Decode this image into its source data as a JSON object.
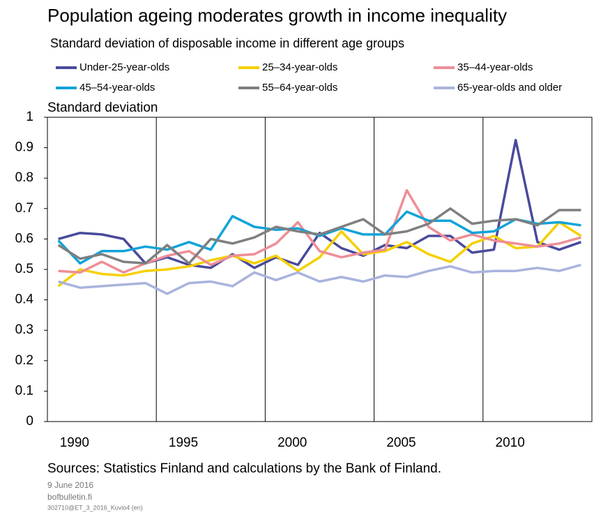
{
  "chart_data": {
    "type": "line",
    "title": "Population ageing moderates growth in income inequality",
    "subtitle": "Standard deviation of disposable income in different age groups",
    "y_axis_label": "Standard deviation",
    "source": "Sources: Statistics Finland and calculations by the Bank of Finland.",
    "date": "9 June 2016",
    "site": "bofbulletin.fi",
    "code": "302710@ET_3_2016_Kuvio4 (en)",
    "x": [
      1989,
      1990,
      1991,
      1992,
      1993,
      1994,
      1995,
      1996,
      1997,
      1998,
      1999,
      2000,
      2001,
      2002,
      2003,
      2004,
      2005,
      2006,
      2007,
      2008,
      2009,
      2010,
      2011,
      2012,
      2013
    ],
    "xlim": [
      1988.5,
      2013.5
    ],
    "xticks": [
      1990,
      1995,
      2000,
      2005,
      2010
    ],
    "x_gridlines": [
      1993.5,
      1998.5,
      2003.5,
      2008.5
    ],
    "ylim": [
      0,
      1
    ],
    "yticks": [
      0,
      0.1,
      0.2,
      0.3,
      0.4,
      0.5,
      0.6,
      0.7,
      0.8,
      0.9,
      1
    ],
    "series": [
      {
        "name": "Under-25-year-olds",
        "color": "#4a4a9c",
        "values": [
          0.6,
          0.62,
          0.615,
          0.6,
          0.52,
          0.54,
          0.515,
          0.505,
          0.55,
          0.505,
          0.54,
          0.515,
          0.62,
          0.57,
          0.545,
          0.58,
          0.57,
          0.61,
          0.61,
          0.555,
          0.565,
          0.925,
          0.59,
          0.565,
          0.59
        ]
      },
      {
        "name": "25–34-year-olds",
        "color": "#f5d000",
        "values": [
          0.445,
          0.5,
          0.485,
          0.48,
          0.495,
          0.5,
          0.51,
          0.53,
          0.545,
          0.52,
          0.545,
          0.495,
          0.54,
          0.625,
          0.55,
          0.56,
          0.59,
          0.55,
          0.525,
          0.585,
          0.61,
          0.57,
          0.575,
          0.655,
          0.61
        ]
      },
      {
        "name": "35–44-year-olds",
        "color": "#ee8e96",
        "values": [
          0.495,
          0.49,
          0.525,
          0.49,
          0.52,
          0.545,
          0.56,
          0.515,
          0.545,
          0.55,
          0.585,
          0.655,
          0.56,
          0.54,
          0.555,
          0.565,
          0.76,
          0.64,
          0.595,
          0.615,
          0.595,
          0.585,
          0.575,
          0.585,
          0.605
        ]
      },
      {
        "name": "45–54-year-olds",
        "color": "#12a3d8",
        "values": [
          0.595,
          0.52,
          0.56,
          0.56,
          0.575,
          0.565,
          0.59,
          0.565,
          0.675,
          0.64,
          0.63,
          0.635,
          0.61,
          0.635,
          0.615,
          0.615,
          0.69,
          0.66,
          0.66,
          0.62,
          0.625,
          0.665,
          0.65,
          0.655,
          0.645
        ]
      },
      {
        "name": "55–64-year-olds",
        "color": "#7f7f7f",
        "values": [
          0.58,
          0.535,
          0.55,
          0.525,
          0.52,
          0.58,
          0.52,
          0.6,
          0.585,
          0.605,
          0.64,
          0.625,
          0.615,
          0.64,
          0.665,
          0.615,
          0.625,
          0.65,
          0.7,
          0.65,
          0.66,
          0.665,
          0.645,
          0.695,
          0.695
        ]
      },
      {
        "name": "65-year-olds and older",
        "color": "#a9b4dc",
        "values": [
          0.46,
          0.44,
          0.445,
          0.45,
          0.455,
          0.42,
          0.455,
          0.46,
          0.445,
          0.49,
          0.465,
          0.49,
          0.46,
          0.475,
          0.46,
          0.48,
          0.475,
          0.495,
          0.51,
          0.49,
          0.495,
          0.495,
          0.505,
          0.495,
          0.515
        ]
      }
    ]
  }
}
